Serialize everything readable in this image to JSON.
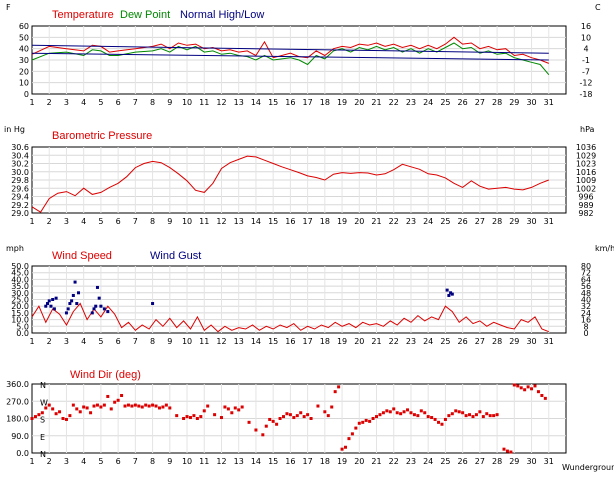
{
  "days": [
    "1",
    "2",
    "3",
    "4",
    "5",
    "6",
    "7",
    "8",
    "9",
    "10",
    "11",
    "12",
    "13",
    "14",
    "15",
    "16",
    "17",
    "18",
    "19",
    "20",
    "21",
    "22",
    "23",
    "24",
    "25",
    "26",
    "27",
    "28",
    "29",
    "30",
    "31"
  ],
  "footer": "Wunderground.com",
  "chart_data": [
    {
      "type": "line",
      "id": "temperature",
      "left_unit": "F",
      "right_unit": "C",
      "ylim": [
        0,
        60
      ],
      "left_ticks": [
        "60",
        "50",
        "40",
        "30",
        "20",
        "10",
        "0"
      ],
      "right_ticks": [
        "16",
        "10",
        "4",
        "-1",
        "-7",
        "-12",
        "-18"
      ],
      "legend": [
        {
          "label": "Temperature",
          "color": "#dd0000"
        },
        {
          "label": "Dew Point",
          "color": "#008800"
        },
        {
          "label": "Normal High/Low",
          "color": "#000080"
        }
      ],
      "series": [
        {
          "name": "Temperature",
          "color": "#dd0000",
          "style": "line",
          "x": [
            1,
            2,
            3,
            4,
            4.5,
            5,
            5.5,
            6,
            7,
            8,
            8.5,
            9,
            9.5,
            10,
            10.5,
            11,
            11.5,
            12,
            12.5,
            13,
            13.5,
            14,
            14.5,
            15,
            15.5,
            16,
            16.5,
            17,
            17.5,
            18,
            18.5,
            19,
            19.5,
            20,
            20.5,
            21,
            21.5,
            22,
            22.5,
            23,
            23.5,
            24,
            24.5,
            25,
            25.5,
            26,
            26.5,
            27,
            27.5,
            28,
            28.5,
            29,
            29.5,
            30,
            30.5,
            31
          ],
          "y": [
            35,
            42,
            40,
            38,
            43,
            42,
            37,
            38,
            40,
            42,
            44,
            40,
            45,
            43,
            44,
            40,
            41,
            38,
            39,
            37,
            38,
            34,
            46,
            32,
            34,
            36,
            33,
            32,
            38,
            34,
            40,
            42,
            41,
            44,
            43,
            45,
            42,
            44,
            41,
            43,
            40,
            43,
            40,
            44,
            50,
            44,
            45,
            40,
            42,
            39,
            40,
            34,
            35,
            32,
            30,
            27
          ]
        },
        {
          "name": "Dew Point",
          "color": "#008800",
          "style": "line",
          "x": [
            1,
            2,
            3,
            4,
            4.5,
            5,
            5.5,
            6,
            7,
            8,
            8.5,
            9,
            9.5,
            10,
            10.5,
            11,
            11.5,
            12,
            12.5,
            13,
            13.5,
            14,
            14.5,
            15,
            15.5,
            16,
            16.5,
            17,
            17.5,
            18,
            18.5,
            19,
            19.5,
            20,
            20.5,
            21,
            21.5,
            22,
            22.5,
            23,
            23.5,
            24,
            24.5,
            25,
            25.5,
            26,
            26.5,
            27,
            27.5,
            28,
            28.5,
            29,
            29.5,
            30,
            30.5,
            31
          ],
          "y": [
            30,
            36,
            37,
            34,
            39,
            38,
            34,
            34,
            37,
            38,
            40,
            37,
            42,
            39,
            42,
            37,
            38,
            35,
            36,
            34,
            33,
            30,
            34,
            30,
            31,
            32,
            30,
            26,
            34,
            31,
            38,
            40,
            37,
            41,
            39,
            42,
            39,
            41,
            37,
            40,
            36,
            40,
            37,
            41,
            45,
            40,
            41,
            36,
            38,
            35,
            36,
            32,
            30,
            28,
            26,
            17
          ]
        },
        {
          "name": "Normal High",
          "color": "#000080",
          "style": "line",
          "x": [
            1,
            31
          ],
          "y": [
            43,
            36
          ]
        },
        {
          "name": "Normal Low",
          "color": "#000080",
          "style": "line",
          "x": [
            1,
            31
          ],
          "y": [
            36,
            30
          ]
        }
      ]
    },
    {
      "type": "line",
      "id": "pressure",
      "left_unit": "in Hg",
      "right_unit": "hPa",
      "ylim": [
        29.0,
        30.6
      ],
      "left_ticks": [
        "30.6",
        "30.4",
        "30.2",
        "30.0",
        "29.8",
        "29.6",
        "29.4",
        "29.2",
        "29.0"
      ],
      "right_ticks": [
        "1036",
        "1029",
        "1023",
        "1016",
        "1009",
        "1002",
        "996",
        "989",
        "982"
      ],
      "legend": [
        {
          "label": "Barometric Pressure",
          "color": "#dd0000"
        }
      ],
      "series": [
        {
          "name": "Barometric Pressure",
          "color": "#dd0000",
          "style": "line",
          "x": [
            1,
            1.5,
            2,
            2.5,
            3,
            3.5,
            4,
            4.5,
            5,
            5.5,
            6,
            6.5,
            7,
            7.5,
            8,
            8.5,
            9,
            9.5,
            10,
            10.5,
            11,
            11.5,
            12,
            12.5,
            13,
            13.5,
            14,
            14.5,
            15,
            15.5,
            16,
            16.5,
            17,
            17.5,
            18,
            18.5,
            19,
            19.5,
            20,
            20.5,
            21,
            21.5,
            22,
            22.5,
            23,
            23.5,
            24,
            24.5,
            25,
            25.5,
            26,
            26.5,
            27,
            27.5,
            28,
            28.5,
            29,
            29.5,
            30,
            30.5,
            31
          ],
          "y": [
            29.15,
            29.02,
            29.35,
            29.48,
            29.52,
            29.42,
            29.6,
            29.45,
            29.5,
            29.62,
            29.72,
            29.88,
            30.1,
            30.2,
            30.25,
            30.22,
            30.1,
            29.95,
            29.78,
            29.55,
            29.5,
            29.72,
            30.08,
            30.22,
            30.3,
            30.38,
            30.36,
            30.28,
            30.2,
            30.12,
            30.05,
            29.98,
            29.9,
            29.86,
            29.8,
            29.94,
            29.98,
            29.96,
            29.98,
            29.97,
            29.92,
            29.95,
            30.05,
            30.18,
            30.12,
            30.06,
            29.95,
            29.92,
            29.85,
            29.72,
            29.62,
            29.78,
            29.65,
            29.58,
            29.6,
            29.62,
            29.58,
            29.56,
            29.62,
            29.72,
            29.8
          ]
        }
      ]
    },
    {
      "type": "line",
      "id": "wind",
      "left_unit": "mph",
      "right_unit": "km/h",
      "ylim": [
        0,
        50
      ],
      "left_ticks": [
        "50.0",
        "45.0",
        "40.0",
        "35.0",
        "30.0",
        "25.0",
        "20.0",
        "15.0",
        "10.0",
        "5.0",
        "0.0"
      ],
      "right_ticks": [
        "80",
        "72",
        "64",
        "56",
        "48",
        "40",
        "32",
        "24",
        "16",
        "8",
        "0"
      ],
      "legend": [
        {
          "label": "Wind Speed",
          "color": "#dd0000"
        },
        {
          "label": "Wind Gust",
          "color": "#000080"
        }
      ],
      "series": [
        {
          "name": "Wind Speed",
          "color": "#dd0000",
          "style": "line",
          "x": [
            1,
            1.4,
            1.8,
            2.2,
            2.6,
            3,
            3.4,
            3.8,
            4.2,
            4.6,
            5,
            5.4,
            5.8,
            6.2,
            6.6,
            7,
            7.4,
            7.8,
            8.2,
            8.6,
            9,
            9.4,
            9.8,
            10.2,
            10.6,
            11,
            11.4,
            11.8,
            12.2,
            12.6,
            13,
            13.4,
            13.8,
            14.2,
            14.6,
            15,
            15.4,
            15.8,
            16.2,
            16.6,
            17,
            17.4,
            17.8,
            18.2,
            18.6,
            19,
            19.4,
            19.8,
            20.2,
            20.6,
            21,
            21.4,
            21.8,
            22.2,
            22.6,
            23,
            23.4,
            23.8,
            24.2,
            24.6,
            25,
            25.4,
            25.8,
            26.2,
            26.6,
            27,
            27.4,
            27.8,
            28.2,
            28.6,
            29,
            29.4,
            29.8,
            30.2,
            30.6,
            31
          ],
          "y": [
            12,
            20,
            8,
            18,
            14,
            6,
            16,
            22,
            10,
            18,
            12,
            20,
            14,
            4,
            8,
            2,
            6,
            3,
            10,
            5,
            11,
            4,
            9,
            3,
            12,
            2,
            6,
            1,
            5,
            2,
            4,
            3,
            6,
            2,
            5,
            3,
            6,
            4,
            7,
            2,
            5,
            3,
            6,
            4,
            8,
            5,
            7,
            4,
            8,
            6,
            7,
            5,
            9,
            6,
            11,
            8,
            13,
            9,
            12,
            10,
            20,
            16,
            8,
            12,
            7,
            9,
            5,
            8,
            6,
            4,
            3,
            10,
            8,
            12,
            3,
            1
          ]
        },
        {
          "name": "Wind Gust",
          "color": "#000080",
          "style": "points",
          "x": [
            1.8,
            1.9,
            2.0,
            2.1,
            2.2,
            2.3,
            2.4,
            3.0,
            3.1,
            3.2,
            3.3,
            3.4,
            3.5,
            3.6,
            3.7,
            4.5,
            4.6,
            4.7,
            4.8,
            4.9,
            5.0,
            5.2,
            5.4,
            8.0,
            25.1,
            25.2,
            25.3,
            25.4
          ],
          "y": [
            20,
            22,
            24,
            20,
            25,
            18,
            26,
            15,
            18,
            22,
            24,
            28,
            38,
            22,
            30,
            15,
            18,
            20,
            34,
            26,
            20,
            18,
            16,
            22,
            32,
            28,
            30,
            29
          ]
        }
      ]
    },
    {
      "type": "scatter",
      "id": "wind_dir",
      "left_unit": "",
      "right_unit": "",
      "ylim": [
        0,
        360
      ],
      "left_ticks": [
        "360.0",
        "270.0",
        "180.0",
        "90.0",
        "0.0"
      ],
      "compass": [
        "N",
        "W",
        "S",
        "E",
        "N"
      ],
      "legend": [
        {
          "label": "Wind Dir (deg)",
          "color": "#dd0000"
        }
      ],
      "series": [
        {
          "name": "Wind Dir (deg)",
          "color": "#dd0000",
          "style": "points",
          "x": [
            1.0,
            1.2,
            1.4,
            1.6,
            1.8,
            2.0,
            2.2,
            2.4,
            2.6,
            2.8,
            3.0,
            3.2,
            3.4,
            3.6,
            3.8,
            4.0,
            4.2,
            4.4,
            4.6,
            4.8,
            5.0,
            5.2,
            5.4,
            5.6,
            5.8,
            6.0,
            6.2,
            6.4,
            6.6,
            6.8,
            7.0,
            7.2,
            7.4,
            7.6,
            7.8,
            8.0,
            8.2,
            8.4,
            8.6,
            8.8,
            9.0,
            9.4,
            9.8,
            10.0,
            10.2,
            10.4,
            10.6,
            10.8,
            11.0,
            11.2,
            11.6,
            12.0,
            12.2,
            12.4,
            12.6,
            12.8,
            13.0,
            13.2,
            13.6,
            14.0,
            14.4,
            14.6,
            14.8,
            15.0,
            15.2,
            15.4,
            15.6,
            15.8,
            16.0,
            16.2,
            16.4,
            16.6,
            16.8,
            17.0,
            17.2,
            17.6,
            18.0,
            18.2,
            18.4,
            18.6,
            18.8,
            19.0,
            19.2,
            19.4,
            19.6,
            19.8,
            20.0,
            20.2,
            20.4,
            20.6,
            20.8,
            21.0,
            21.2,
            21.4,
            21.6,
            21.8,
            22.0,
            22.2,
            22.4,
            22.6,
            22.8,
            23.0,
            23.2,
            23.4,
            23.6,
            23.8,
            24.0,
            24.2,
            24.4,
            24.6,
            24.8,
            25.0,
            25.2,
            25.4,
            25.6,
            25.8,
            26.0,
            26.2,
            26.4,
            26.6,
            26.8,
            27.0,
            27.2,
            27.4,
            27.6,
            27.8,
            28.0,
            28.4,
            28.6,
            28.8,
            29.0,
            29.2,
            29.4,
            29.6,
            29.8,
            30.0,
            30.2,
            30.4,
            30.6,
            30.8
          ],
          "y": [
            180,
            190,
            200,
            210,
            235,
            250,
            230,
            205,
            215,
            180,
            175,
            195,
            250,
            230,
            215,
            240,
            235,
            210,
            245,
            250,
            240,
            250,
            295,
            230,
            265,
            275,
            300,
            245,
            250,
            245,
            250,
            245,
            240,
            250,
            245,
            250,
            245,
            235,
            240,
            250,
            235,
            195,
            180,
            190,
            185,
            195,
            180,
            190,
            220,
            245,
            200,
            185,
            240,
            230,
            210,
            235,
            225,
            240,
            160,
            120,
            95,
            140,
            175,
            165,
            150,
            180,
            190,
            205,
            200,
            185,
            195,
            210,
            190,
            200,
            180,
            245,
            215,
            195,
            240,
            320,
            345,
            20,
            30,
            75,
            100,
            130,
            155,
            160,
            170,
            165,
            180,
            190,
            200,
            210,
            220,
            215,
            230,
            210,
            205,
            215,
            225,
            210,
            200,
            195,
            220,
            210,
            190,
            185,
            175,
            160,
            150,
            175,
            195,
            205,
            220,
            215,
            210,
            195,
            200,
            190,
            200,
            215,
            190,
            205,
            195,
            195,
            200,
            20,
            10,
            5,
            355,
            350,
            340,
            330,
            345,
            335,
            350,
            320,
            300,
            285
          ]
        }
      ]
    }
  ]
}
